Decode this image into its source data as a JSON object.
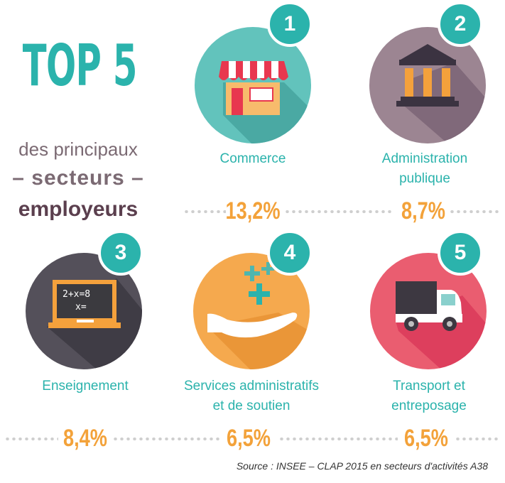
{
  "header": {
    "title": "TOP 5",
    "line1": "des principaux",
    "line2": "– secteurs –",
    "line3": "employeurs"
  },
  "source": "Source : INSEE – CLAP 2015 en secteurs d'activités A38",
  "colors": {
    "teal": "#2bb3ac",
    "orange": "#f3a23a",
    "mauve": "#7b6a73",
    "commerce": "#62c3bc",
    "administration": "#9c8592",
    "enseignement": "#54505a",
    "services": "#f5a94e",
    "transport": "#ea5d70"
  },
  "chart_data": {
    "type": "table",
    "title": "TOP 5 des principaux secteurs employeurs",
    "items": [
      {
        "rank": "1",
        "sector": "Commerce",
        "sector_line1": "Commerce",
        "sector_line2": "",
        "value": 13.2,
        "label": "13,2%",
        "icon": "shop-icon"
      },
      {
        "rank": "2",
        "sector": "Administration publique",
        "sector_line1": "Administration",
        "sector_line2": "publique",
        "value": 8.7,
        "label": "8,7%",
        "icon": "government-building-icon"
      },
      {
        "rank": "3",
        "sector": "Enseignement",
        "sector_line1": "Enseignement",
        "sector_line2": "",
        "value": 8.4,
        "label": "8,4%",
        "icon": "blackboard-icon"
      },
      {
        "rank": "4",
        "sector": "Services administratifs et de soutien",
        "sector_line1": "Services administratifs",
        "sector_line2": "et de soutien",
        "value": 6.5,
        "label": "6,5%",
        "icon": "hand-plus-icon"
      },
      {
        "rank": "5",
        "sector": "Transport et entreposage",
        "sector_line1": "Transport et",
        "sector_line2": "entreposage",
        "value": 6.5,
        "label": "6,5%",
        "icon": "truck-icon"
      }
    ]
  }
}
